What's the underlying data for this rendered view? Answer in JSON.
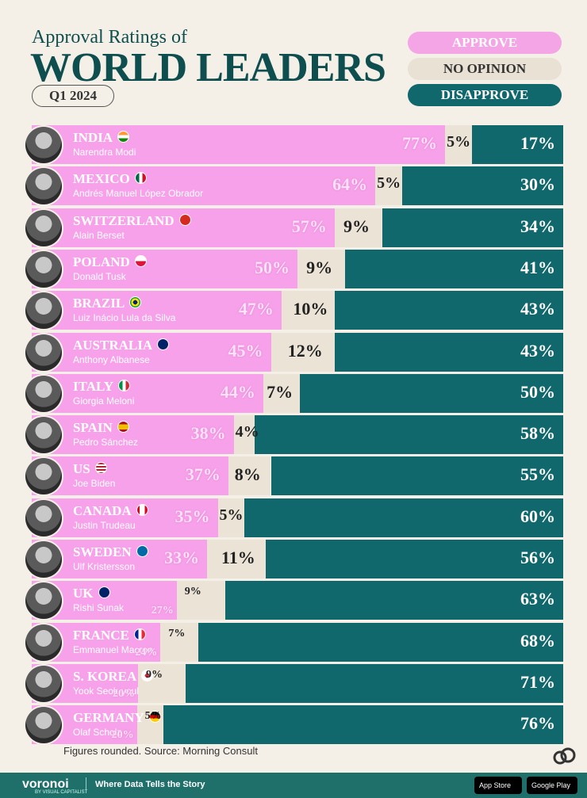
{
  "header": {
    "subtitle": "Approval Ratings of",
    "title": "WORLD LEADERS",
    "period": "Q1 2024"
  },
  "legend": {
    "approve": "APPROVE",
    "no_opinion": "NO OPINION",
    "disapprove": "DISAPPROVE"
  },
  "colors": {
    "approve": "#f7a1ea",
    "no_opinion": "#ebe3d6",
    "disapprove": "#10676c",
    "background": "#f4f0e8"
  },
  "chart_data": {
    "type": "bar",
    "stacked": true,
    "orientation": "horizontal",
    "series": [
      {
        "name": "APPROVE",
        "values": [
          77,
          64,
          57,
          50,
          47,
          45,
          44,
          38,
          37,
          35,
          33,
          27,
          24,
          20,
          20
        ]
      },
      {
        "name": "NO OPINION",
        "values": [
          5,
          5,
          9,
          9,
          10,
          12,
          7,
          4,
          8,
          5,
          11,
          9,
          7,
          9,
          5
        ]
      },
      {
        "name": "DISAPPROVE",
        "values": [
          17,
          30,
          34,
          41,
          43,
          43,
          50,
          58,
          55,
          60,
          56,
          63,
          68,
          71,
          76
        ]
      }
    ],
    "rows": [
      {
        "country": "INDIA",
        "leader": "Narendra Modi",
        "flag": "india-flag-icon",
        "approve": "77%",
        "no_opinion": "5%",
        "disapprove": "17%"
      },
      {
        "country": "MEXICO",
        "leader": "Andrés Manuel López Obrador",
        "flag": "mexico-flag-icon",
        "approve": "64%",
        "no_opinion": "5%",
        "disapprove": "30%"
      },
      {
        "country": "SWITZERLAND",
        "leader": "Alain Berset",
        "flag": "switzerland-flag-icon",
        "approve": "57%",
        "no_opinion": "9%",
        "disapprove": "34%"
      },
      {
        "country": "POLAND",
        "leader": "Donald Tusk",
        "flag": "poland-flag-icon",
        "approve": "50%",
        "no_opinion": "9%",
        "disapprove": "41%"
      },
      {
        "country": "BRAZIL",
        "leader": "Luiz Inácio Lula da Silva",
        "flag": "brazil-flag-icon",
        "approve": "47%",
        "no_opinion": "10%",
        "disapprove": "43%"
      },
      {
        "country": "AUSTRALIA",
        "leader": "Anthony Albanese",
        "flag": "australia-flag-icon",
        "approve": "45%",
        "no_opinion": "12%",
        "disapprove": "43%"
      },
      {
        "country": "ITALY",
        "leader": "Giorgia Meloni",
        "flag": "italy-flag-icon",
        "approve": "44%",
        "no_opinion": "7%",
        "disapprove": "50%"
      },
      {
        "country": "SPAIN",
        "leader": "Pedro Sánchez",
        "flag": "spain-flag-icon",
        "approve": "38%",
        "no_opinion": "4%",
        "disapprove": "58%"
      },
      {
        "country": "US",
        "leader": "Joe Biden",
        "flag": "us-flag-icon",
        "approve": "37%",
        "no_opinion": "8%",
        "disapprove": "55%"
      },
      {
        "country": "CANADA",
        "leader": "Justin Trudeau",
        "flag": "canada-flag-icon",
        "approve": "35%",
        "no_opinion": "5%",
        "disapprove": "60%"
      },
      {
        "country": "SWEDEN",
        "leader": "Ulf Kristersson",
        "flag": "sweden-flag-icon",
        "approve": "33%",
        "no_opinion": "11%",
        "disapprove": "56%"
      },
      {
        "country": "UK",
        "leader": "Rishi Sunak",
        "flag": "uk-flag-icon",
        "approve": "27%",
        "no_opinion": "9%",
        "disapprove": "63%"
      },
      {
        "country": "FRANCE",
        "leader": "Emmanuel Macron",
        "flag": "france-flag-icon",
        "approve": "24%",
        "no_opinion": "7%",
        "disapprove": "68%"
      },
      {
        "country": "S. KOREA",
        "leader": "Yook Seok-youl",
        "flag": "south-korea-flag-icon",
        "approve": "20%",
        "no_opinion": "9%",
        "disapprove": "71%"
      },
      {
        "country": "GERMANY",
        "leader": "Olaf Scholz",
        "flag": "germany-flag-icon",
        "approve": "20%",
        "no_opinion": "5%",
        "disapprove": "76%"
      }
    ]
  },
  "footer": {
    "note": "Figures rounded. Source: Morning Consult",
    "brand": "voronoi",
    "brand_sub": "BY VISUAL CAPITALIST",
    "tagline": "Where Data Tells the Story",
    "app_store": "App Store",
    "google_play": "Google Play"
  }
}
